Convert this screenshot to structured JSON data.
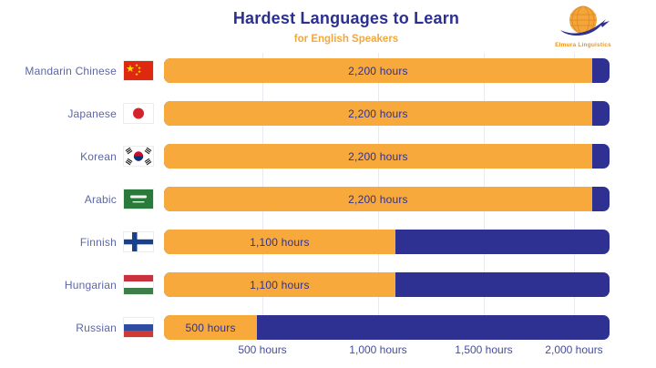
{
  "header": {
    "title": "Hardest Languages to Learn",
    "subtitle": "for English Speakers"
  },
  "logo": {
    "brand": "Elmura Linguistics",
    "icon": "globe-swoosh-icon"
  },
  "colors": {
    "bar_filled": "#F7A93B",
    "bar_remainder": "#2E3192",
    "title_text": "#2B2F8E",
    "subtitle_text": "#F2A83B",
    "row_label_text": "#5D67A5",
    "axis_label_text": "#454D9E",
    "gridline": "#E8EAF3",
    "background": "#FFFFFF"
  },
  "chart_data": {
    "type": "bar",
    "orientation": "horizontal",
    "title": "Hardest Languages to Learn",
    "subtitle": "for English Speakers",
    "unit": "hours",
    "categories": [
      "Mandarin Chinese",
      "Japanese",
      "Korean",
      "Arabic",
      "Finnish",
      "Hungarian",
      "Russian"
    ],
    "values": [
      2200,
      2200,
      2200,
      2200,
      1100,
      1100,
      500
    ],
    "bar_labels": [
      "2,200 hours",
      "2,200 hours",
      "2,200 hours",
      "2,200 hours",
      "1,100 hours",
      "1,100 hours",
      "500 hours"
    ],
    "flags": [
      "china",
      "japan",
      "south-korea",
      "saudi-arabia",
      "finland",
      "hungary",
      "russia"
    ],
    "x_ticks": [
      "500 hours",
      "1,000 hours",
      "1,500 hours",
      "2,000 hours"
    ],
    "x_tick_values": [
      500,
      1000,
      1500,
      2000
    ],
    "xlim": [
      0,
      2290
    ],
    "grid": "faint-vertical",
    "legend_position": "none"
  }
}
